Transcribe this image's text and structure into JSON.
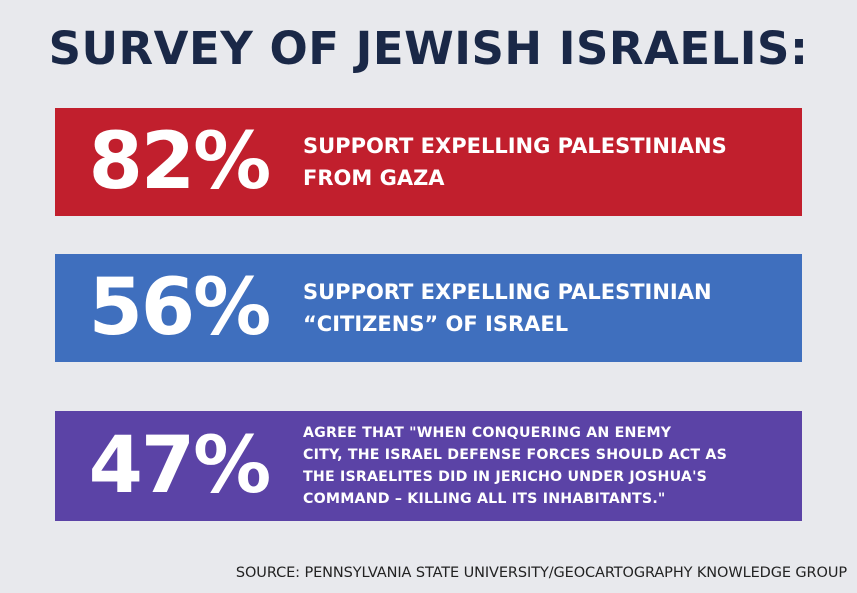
{
  "title": "SURVEY OF JEWISH ISRAELIS:",
  "stats": [
    {
      "value": "82%",
      "lines": [
        "SUPPORT EXPELLING PALESTINIANS",
        "FROM GAZA"
      ],
      "color": "#c11f2d"
    },
    {
      "value": "56%",
      "lines": [
        "SUPPORT EXPELLING PALESTINIAN",
        "“CITIZENS” OF ISRAEL"
      ],
      "color": "#3f6fbe"
    },
    {
      "value": "47%",
      "lines": [
        "AGREE THAT \"WHEN CONQUERING AN ENEMY",
        "CITY, THE ISRAEL DEFENSE FORCES SHOULD ACT AS",
        "THE ISRAELITES DID IN JERICHO UNDER JOSHUA'S",
        "COMMAND – KILLING ALL ITS INHABITANTS.\""
      ],
      "color": "#5b43a6"
    }
  ],
  "source": "SOURCE: PENNSYLVANIA STATE UNIVERSITY/GEOCARTOGRAPHY KNOWLEDGE GROUP",
  "colors": {
    "background": "#e8e9ed",
    "title": "#1a2847"
  }
}
